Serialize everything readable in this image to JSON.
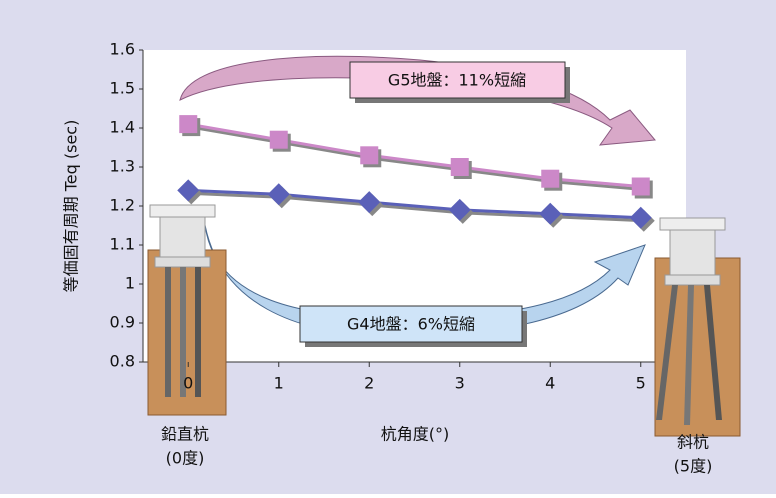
{
  "chart_data": {
    "type": "line",
    "y_label": "等価固有周期 Teq (sec)",
    "x_label": "杭角度(°)",
    "x": [
      0,
      1,
      2,
      3,
      4,
      5
    ],
    "xlim": [
      -0.5,
      5.5
    ],
    "xticks": [
      0,
      1,
      2,
      3,
      4,
      5
    ],
    "ylim": [
      0.8,
      1.6
    ],
    "yticks": [
      0.8,
      0.9,
      1,
      1.1,
      1.2,
      1.3,
      1.4,
      1.5,
      1.6
    ],
    "series": [
      {
        "color": "#cc88c8",
        "marker": "square",
        "values": [
          1.41,
          1.37,
          1.33,
          1.3,
          1.27,
          1.25
        ]
      },
      {
        "color": "#5a60b8",
        "marker": "diamond",
        "values": [
          1.24,
          1.23,
          1.21,
          1.19,
          1.18,
          1.17
        ]
      }
    ],
    "annotations": [
      "G5地盤：11%短縮",
      "G4地盤：6%短縮"
    ],
    "pile_labels": [
      "鉛直杭",
      "(0度)",
      "斜杭",
      "(5度)"
    ]
  }
}
